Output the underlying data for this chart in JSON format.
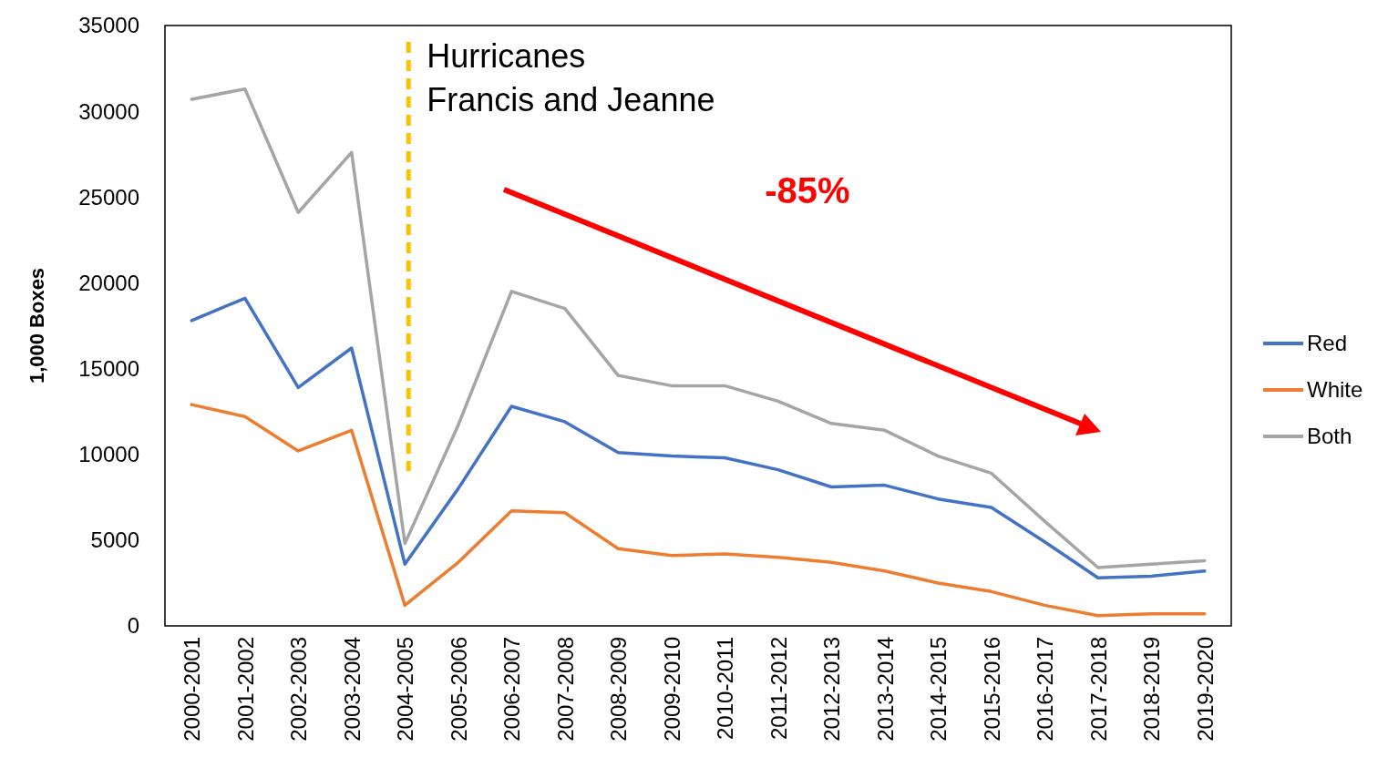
{
  "chart_data": {
    "type": "line",
    "ylabel": "1,000 Boxes",
    "categories": [
      "2000-2001",
      "2001-2002",
      "2002-2003",
      "2003-2004",
      "2004-2005",
      "2005-2006",
      "2006-2007",
      "2007-2008",
      "2008-2009",
      "2009-2010",
      "2010-2011",
      "2011-2012",
      "2012-2013",
      "2013-2014",
      "2014-2015",
      "2015-2016",
      "2016-2017",
      "2017-2018",
      "2018-2019",
      "2019-2020"
    ],
    "series": [
      {
        "name": "Red",
        "color": "#4472c4",
        "values": [
          17800,
          19100,
          13900,
          16200,
          3600,
          8000,
          12800,
          11900,
          10100,
          9900,
          9800,
          9100,
          8100,
          8200,
          7400,
          6900,
          4900,
          2800,
          2900,
          3200
        ]
      },
      {
        "name": "White",
        "color": "#ed7d31",
        "values": [
          12900,
          12200,
          10200,
          11400,
          1200,
          3700,
          6700,
          6600,
          4500,
          4100,
          4200,
          4000,
          3700,
          3200,
          2500,
          2000,
          1200,
          600,
          700,
          700
        ]
      },
      {
        "name": "Both",
        "color": "#a5a5a5",
        "values": [
          30700,
          31300,
          24100,
          27600,
          4800,
          11700,
          19500,
          18500,
          14600,
          14000,
          14000,
          13100,
          11800,
          11400,
          9900,
          8900,
          6100,
          3400,
          3600,
          3800
        ]
      }
    ],
    "ylim": [
      0,
      35000
    ],
    "yticks": [
      0,
      5000,
      10000,
      15000,
      20000,
      25000,
      30000,
      35000
    ],
    "ref_lines": [
      {
        "axis": "x",
        "value": "2004-2005",
        "label": "Hurricanes\nFrancis and Jeanne",
        "color": "#ffc000",
        "line_style": "dashed"
      }
    ],
    "annotations": [
      "-85%"
    ],
    "legend": "right",
    "grid": false,
    "marker": "none",
    "line_style": "solid"
  }
}
